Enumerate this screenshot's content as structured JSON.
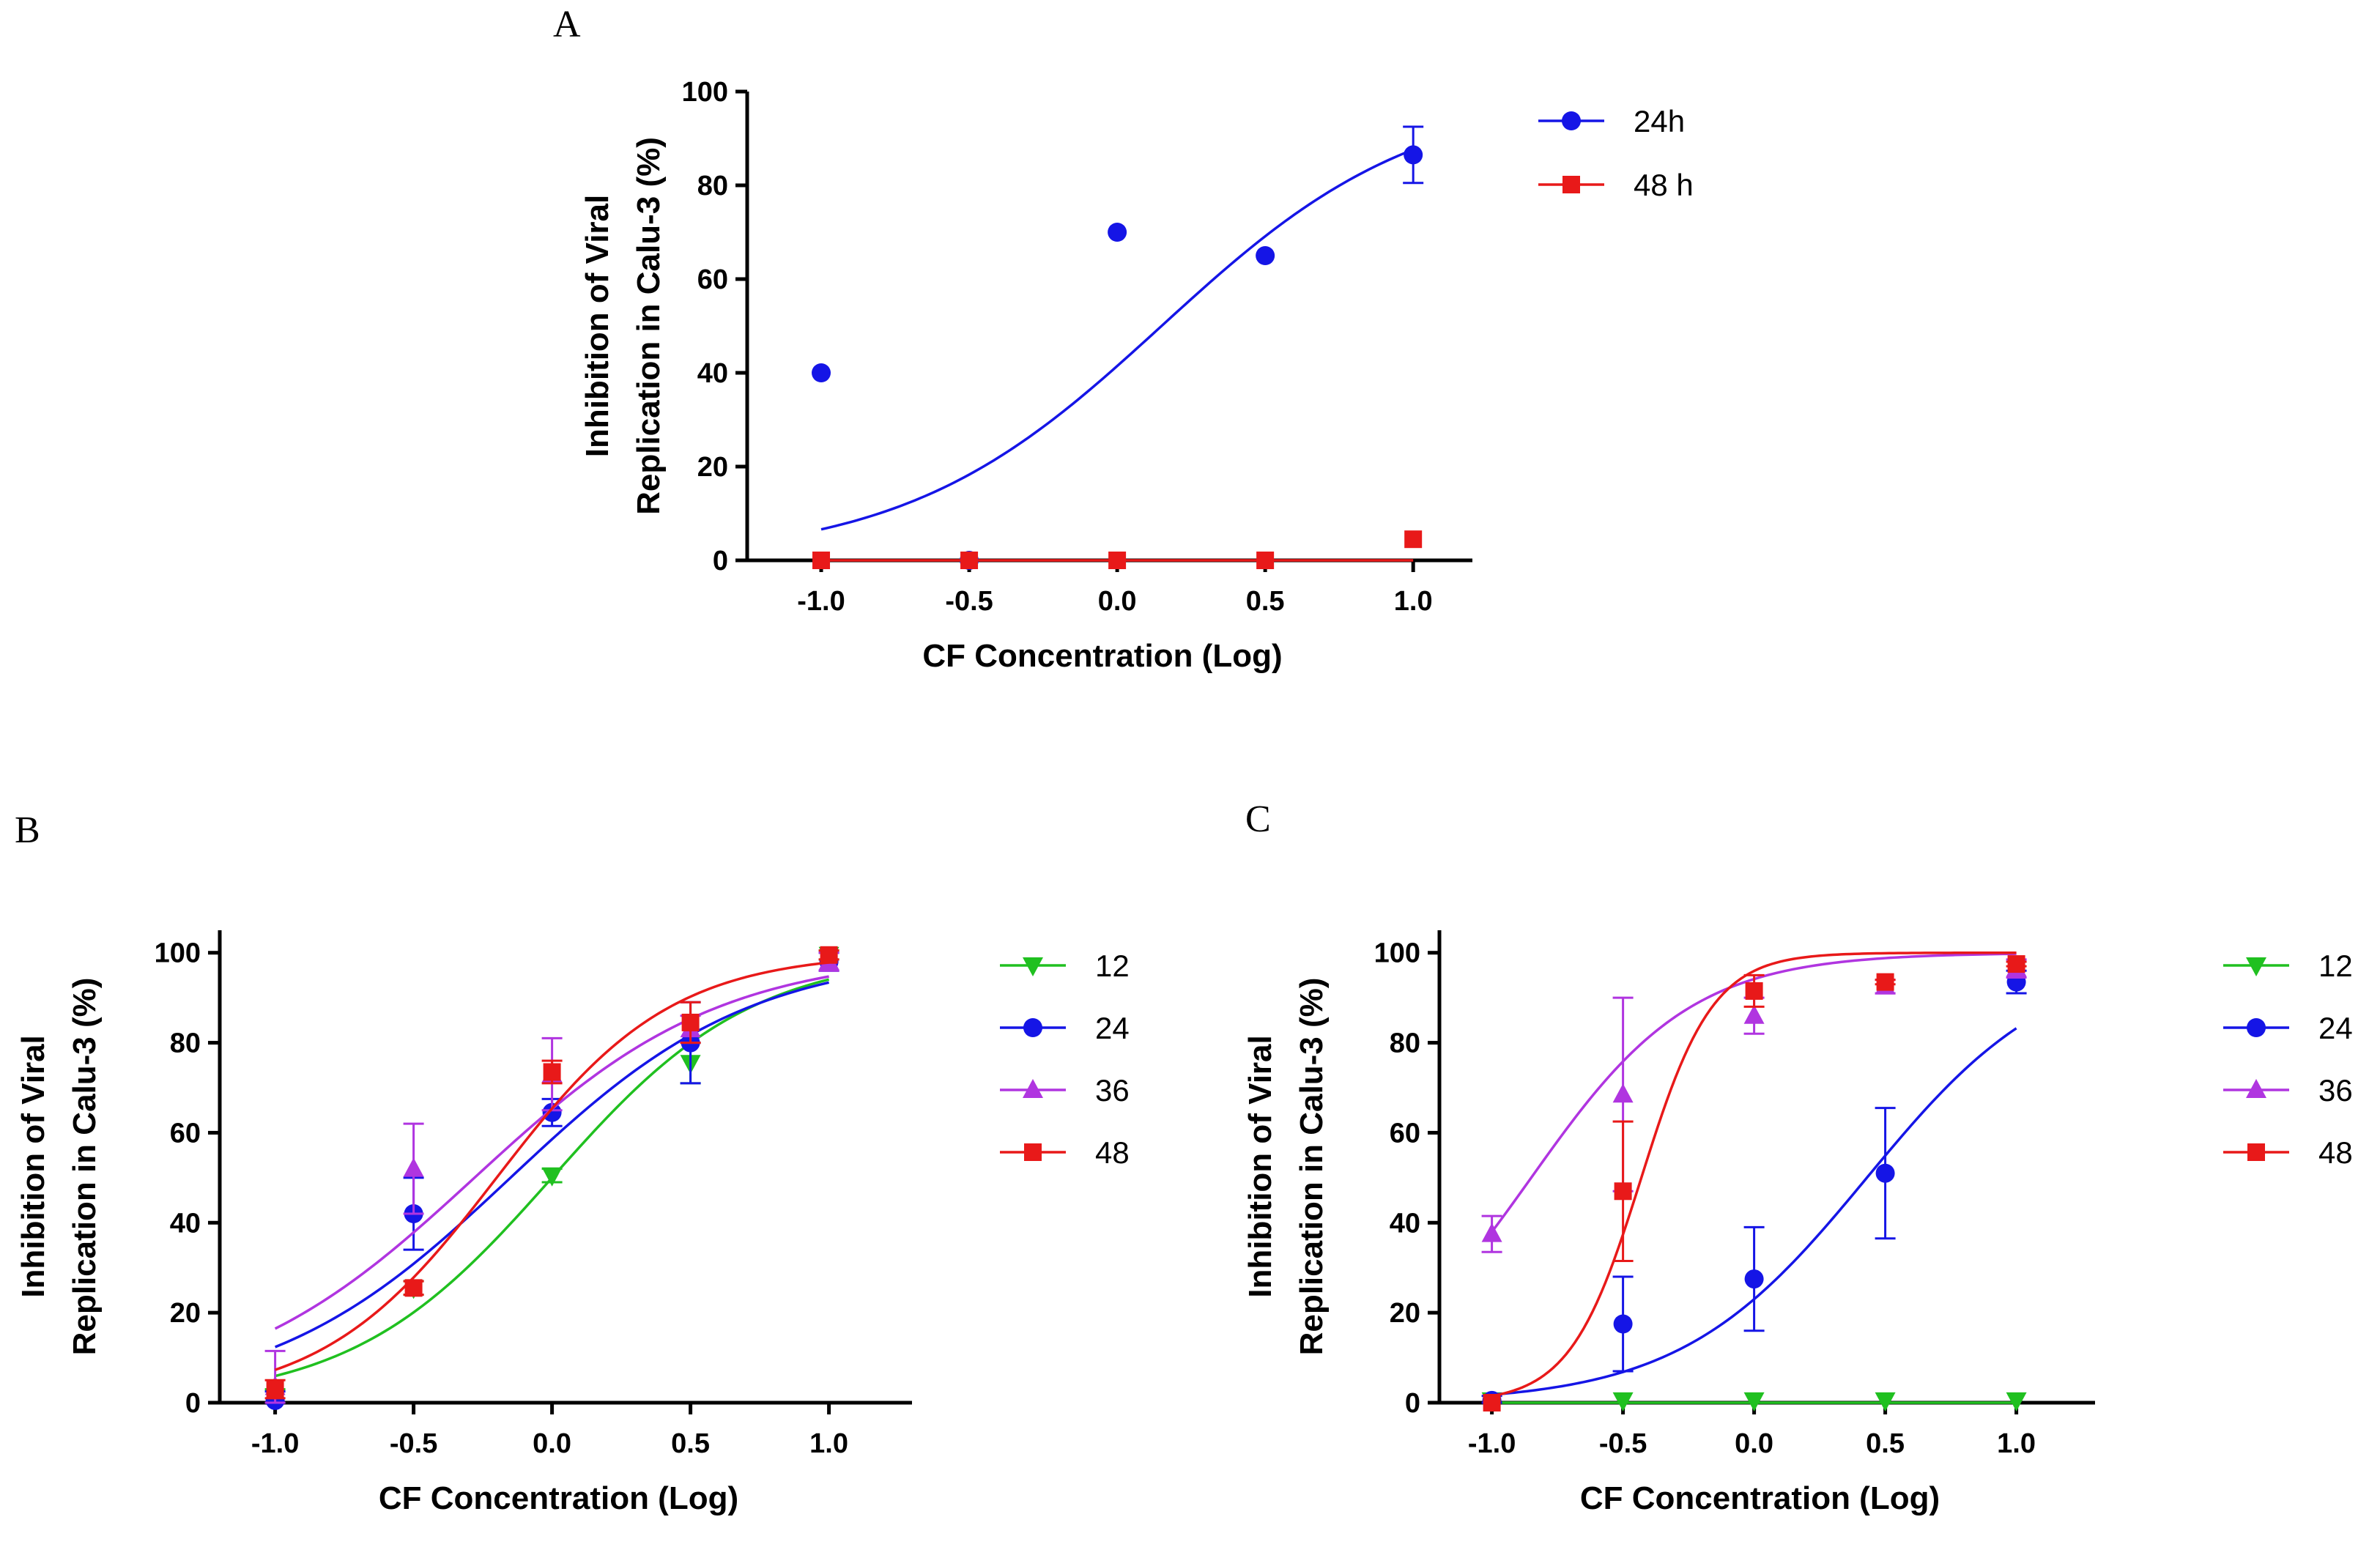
{
  "chart_data": [
    {
      "panel": "A",
      "type": "scatter",
      "xlabel": "CF Concentration (Log)",
      "ylabel": [
        "Inhibition of Viral",
        "Replication in Calu-3 (%)"
      ],
      "xlim": [
        -1.25,
        1.2
      ],
      "ylim": [
        0,
        100
      ],
      "xticks": [
        -1.0,
        -0.5,
        0.0,
        0.5,
        1.0
      ],
      "xtick_labels": [
        "-1.0",
        "-0.5",
        "0.0",
        "0.5",
        "1.0"
      ],
      "yticks": [
        0,
        20,
        40,
        60,
        80,
        100
      ],
      "ytick_labels": [
        "0",
        "20",
        "40",
        "60",
        "80",
        "100"
      ],
      "legend_position": "right",
      "series": [
        {
          "name": "24h",
          "color": "#1515e6",
          "marker": "circle",
          "x": [
            -1.0,
            -0.5,
            0.0,
            0.5,
            1.0
          ],
          "y": [
            40,
            0,
            70,
            65,
            86.5
          ],
          "err": [
            0,
            0,
            0,
            0,
            6
          ],
          "fit": {
            "bottom": 0,
            "top": 100,
            "logec50": 0.15,
            "hill": 1.0
          }
        },
        {
          "name": "48 h",
          "color": "#e81919",
          "marker": "square",
          "x": [
            -1.0,
            -0.5,
            0.0,
            0.5,
            1.0
          ],
          "y": [
            0,
            0,
            0,
            0,
            4.5
          ],
          "err": [
            0,
            0,
            0,
            0,
            0
          ],
          "fit": {
            "flat": 0
          }
        }
      ]
    },
    {
      "panel": "B",
      "type": "scatter",
      "xlabel": "CF Concentration (Log)",
      "ylabel": [
        "Inhibition of Viral",
        "Replication in Calu-3 (%)"
      ],
      "xlim": [
        -1.2,
        1.3
      ],
      "ylim": [
        0,
        105
      ],
      "xticks": [
        -1.0,
        -0.5,
        0.0,
        0.5,
        1.0
      ],
      "xtick_labels": [
        "-1.0",
        "-0.5",
        "0.0",
        "0.5",
        "1.0"
      ],
      "yticks": [
        0,
        20,
        40,
        60,
        80,
        100
      ],
      "ytick_labels": [
        "0",
        "20",
        "40",
        "60",
        "80",
        "100"
      ],
      "legend_position": "right",
      "series": [
        {
          "name": "12",
          "color": "#20c020",
          "marker": "triangle-down",
          "x": [
            -1.0,
            -0.5,
            0.0,
            0.5,
            1.0
          ],
          "y": [
            1,
            25.5,
            50.5,
            75.5,
            99.5
          ],
          "err": [
            2,
            1.5,
            1.5,
            4.5,
            1
          ],
          "fit": {
            "bottom": 0,
            "top": 100,
            "logec50": 0.0,
            "hill": 1.2
          }
        },
        {
          "name": "24",
          "color": "#1515e6",
          "marker": "circle",
          "x": [
            -1.0,
            -0.5,
            0.0,
            0.5,
            1.0
          ],
          "y": [
            0.5,
            42,
            64.5,
            80,
            98
          ],
          "err": [
            2,
            8,
            3,
            9,
            2
          ],
          "fit": {
            "bottom": 0,
            "top": 100,
            "logec50": -0.15,
            "hill": 1.0
          }
        },
        {
          "name": "36",
          "color": "#b035e0",
          "marker": "triangle",
          "x": [
            -1.0,
            -0.5,
            0.0,
            0.5,
            1.0
          ],
          "y": [
            3.5,
            52,
            73,
            83,
            98
          ],
          "err": [
            8,
            10,
            8,
            3,
            2
          ],
          "fit": {
            "bottom": 0,
            "top": 100,
            "logec50": -0.28,
            "hill": 0.98
          }
        },
        {
          "name": "48",
          "color": "#e81919",
          "marker": "square",
          "x": [
            -1.0,
            -0.5,
            0.0,
            0.5,
            1.0
          ],
          "y": [
            3,
            25.5,
            73.5,
            84.5,
            99.5
          ],
          "err": [
            2,
            1.5,
            2.5,
            4.5,
            1
          ],
          "fit": {
            "bottom": 0,
            "top": 100,
            "logec50": -0.2,
            "hill": 1.38
          }
        }
      ]
    },
    {
      "panel": "C",
      "type": "scatter",
      "xlabel": "CF Concentration (Log)",
      "ylabel": [
        "Inhibition of Viral",
        "Replication in Calu-3 (%)"
      ],
      "xlim": [
        -1.2,
        1.3
      ],
      "ylim": [
        0,
        105
      ],
      "xticks": [
        -1.0,
        -0.5,
        0.0,
        0.5,
        1.0
      ],
      "xtick_labels": [
        "-1.0",
        "-0.5",
        "0.0",
        "0.5",
        "1.0"
      ],
      "yticks": [
        0,
        20,
        40,
        60,
        80,
        100
      ],
      "ytick_labels": [
        "0",
        "20",
        "40",
        "60",
        "80",
        "100"
      ],
      "legend_position": "right",
      "series": [
        {
          "name": "12",
          "color": "#20c020",
          "marker": "triangle-down",
          "x": [
            -1.0,
            -0.5,
            0.0,
            0.5,
            1.0
          ],
          "y": [
            0.5,
            0.5,
            0.5,
            0.5,
            0.5
          ],
          "err": [
            0,
            0,
            0,
            0,
            0
          ],
          "fit": {
            "flat": 0
          }
        },
        {
          "name": "24",
          "color": "#1515e6",
          "marker": "circle",
          "x": [
            -1.0,
            -0.5,
            0.0,
            0.5,
            1.0
          ],
          "y": [
            0.5,
            17.5,
            27.5,
            51,
            93.5
          ],
          "err": [
            1,
            10.5,
            11.5,
            14.5,
            2.5
          ],
          "fit": {
            "bottom": 0,
            "top": 100,
            "logec50": 0.43,
            "hill": 1.22
          }
        },
        {
          "name": "36",
          "color": "#b035e0",
          "marker": "triangle",
          "x": [
            -1.0,
            -0.5,
            0.0,
            0.5,
            1.0
          ],
          "y": [
            37.5,
            68.5,
            86,
            92.5,
            96.5
          ],
          "err": [
            4,
            21.5,
            4,
            1.5,
            2
          ],
          "fit": {
            "bottom": 0,
            "top": 100,
            "logec50": -0.85,
            "hill": 1.42
          }
        },
        {
          "name": "48",
          "color": "#e81919",
          "marker": "square",
          "x": [
            -1.0,
            -0.5,
            0.0,
            0.5,
            1.0
          ],
          "y": [
            0,
            47,
            91.5,
            93.5,
            97.5
          ],
          "err": [
            0,
            15.5,
            3.5,
            0.5,
            0.5
          ],
          "fit": {
            "bottom": 0,
            "top": 100,
            "logec50": -0.43,
            "hill": 3.2
          }
        }
      ]
    }
  ]
}
